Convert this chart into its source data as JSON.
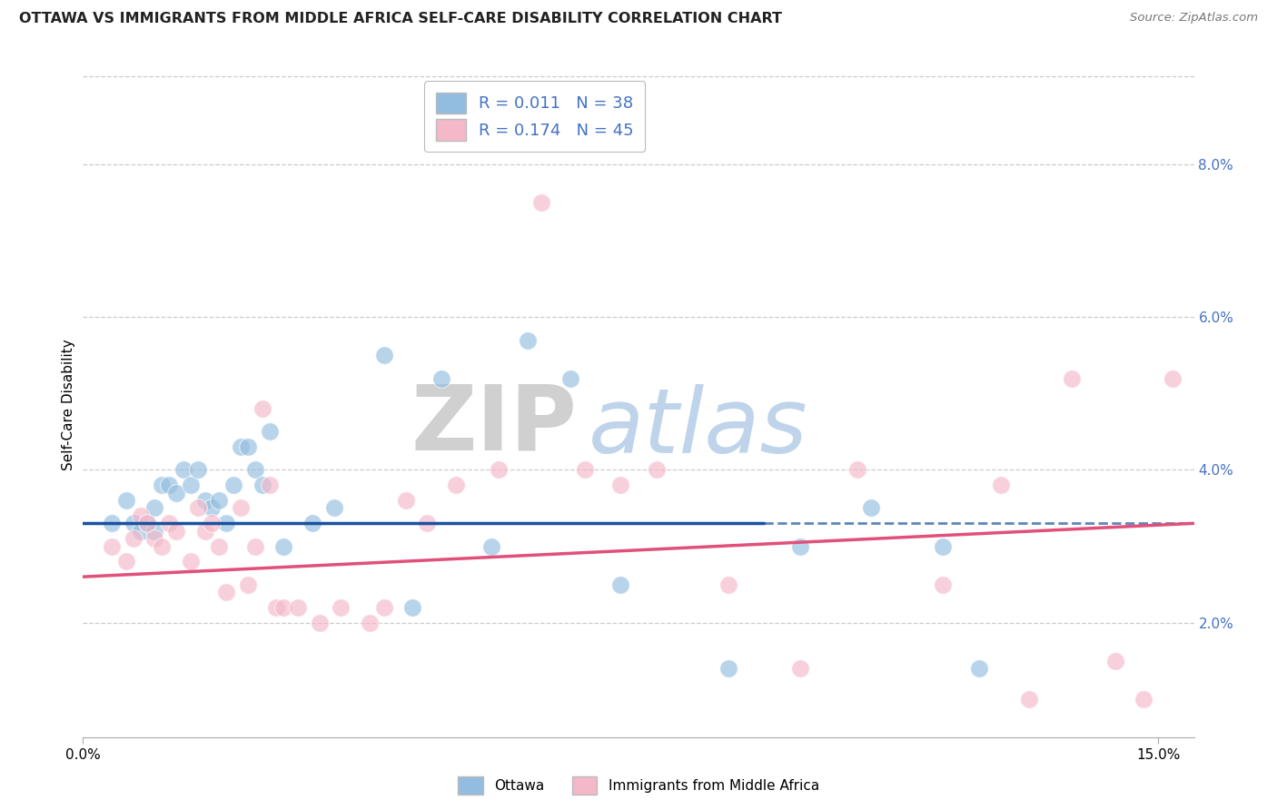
{
  "title": "OTTAWA VS IMMIGRANTS FROM MIDDLE AFRICA SELF-CARE DISABILITY CORRELATION CHART",
  "source": "Source: ZipAtlas.com",
  "ylabel": "Self-Care Disability",
  "ytick_vals": [
    0.02,
    0.04,
    0.06,
    0.08
  ],
  "ytick_labels": [
    "2.0%",
    "4.0%",
    "6.0%",
    "8.0%"
  ],
  "xlim": [
    0.0,
    0.155
  ],
  "ylim": [
    0.005,
    0.092
  ],
  "scatter_blue": "#93bde0",
  "scatter_pink": "#f4b8c8",
  "blue_line": "#1a52a0",
  "pink_line": "#e0507a",
  "background": "#ffffff",
  "grid_color": "#cccccc",
  "title_color": "#222222",
  "source_color": "#777777",
  "right_tick_color": "#4472c4",
  "legend_r_color": "#4472c4",
  "ottawa_x": [
    0.004,
    0.006,
    0.007,
    0.008,
    0.009,
    0.01,
    0.01,
    0.011,
    0.012,
    0.013,
    0.014,
    0.015,
    0.016,
    0.017,
    0.018,
    0.019,
    0.02,
    0.021,
    0.022,
    0.023,
    0.024,
    0.025,
    0.026,
    0.028,
    0.032,
    0.035,
    0.042,
    0.046,
    0.05,
    0.057,
    0.062,
    0.068,
    0.075,
    0.09,
    0.1,
    0.11,
    0.12,
    0.125
  ],
  "ottawa_y": [
    0.033,
    0.036,
    0.033,
    0.032,
    0.033,
    0.032,
    0.035,
    0.038,
    0.038,
    0.037,
    0.04,
    0.038,
    0.04,
    0.036,
    0.035,
    0.036,
    0.033,
    0.038,
    0.043,
    0.043,
    0.04,
    0.038,
    0.045,
    0.03,
    0.033,
    0.035,
    0.055,
    0.022,
    0.052,
    0.03,
    0.057,
    0.052,
    0.025,
    0.014,
    0.03,
    0.035,
    0.03,
    0.014
  ],
  "immigrants_x": [
    0.004,
    0.006,
    0.007,
    0.008,
    0.009,
    0.01,
    0.011,
    0.012,
    0.013,
    0.015,
    0.016,
    0.017,
    0.018,
    0.019,
    0.02,
    0.022,
    0.023,
    0.024,
    0.025,
    0.026,
    0.027,
    0.028,
    0.03,
    0.033,
    0.036,
    0.04,
    0.042,
    0.045,
    0.048,
    0.052,
    0.058,
    0.064,
    0.07,
    0.075,
    0.08,
    0.09,
    0.1,
    0.108,
    0.12,
    0.128,
    0.132,
    0.138,
    0.144,
    0.148,
    0.152
  ],
  "immigrants_y": [
    0.03,
    0.028,
    0.031,
    0.034,
    0.033,
    0.031,
    0.03,
    0.033,
    0.032,
    0.028,
    0.035,
    0.032,
    0.033,
    0.03,
    0.024,
    0.035,
    0.025,
    0.03,
    0.048,
    0.038,
    0.022,
    0.022,
    0.022,
    0.02,
    0.022,
    0.02,
    0.022,
    0.036,
    0.033,
    0.038,
    0.04,
    0.075,
    0.04,
    0.038,
    0.04,
    0.025,
    0.014,
    0.04,
    0.025,
    0.038,
    0.01,
    0.052,
    0.015,
    0.01,
    0.052
  ]
}
